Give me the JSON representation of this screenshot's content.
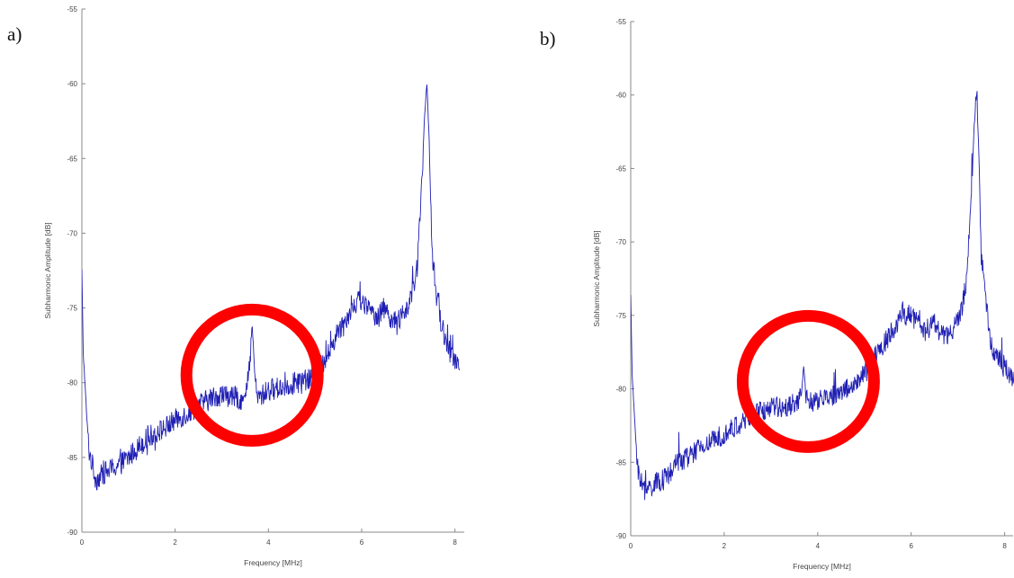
{
  "figure": {
    "panels": [
      {
        "label": "a)"
      },
      {
        "label": "b)"
      }
    ]
  },
  "colors": {
    "trace": "#1f1fb4",
    "circle": "#ff0000",
    "axis": "#888888"
  },
  "chart_data": [
    {
      "type": "line",
      "title": "",
      "xlabel": "Frequency [MHz]",
      "ylabel": "Subharmonic Amplitude [dB]",
      "xlim": [
        0,
        8.2
      ],
      "ylim": [
        -90,
        -55
      ],
      "xticks": [
        0,
        2,
        4,
        6,
        8
      ],
      "yticks": [
        -90,
        -85,
        -80,
        -75,
        -70,
        -65,
        -60,
        -55
      ],
      "grid": false,
      "series": [
        {
          "x": [
            0,
            0.03,
            0.1,
            0.15,
            0.3,
            0.5,
            0.8,
            1.0,
            1.3,
            1.5,
            1.8,
            2.0,
            2.3,
            2.5,
            2.8,
            3.0,
            3.3,
            3.5,
            3.6,
            3.65,
            3.7,
            3.75,
            3.8,
            4.0,
            4.3,
            4.6,
            4.9,
            5.1,
            5.3,
            5.5,
            5.7,
            5.9,
            6.0,
            6.1,
            6.3,
            6.5,
            6.7,
            6.9,
            7.1,
            7.2,
            7.3,
            7.35,
            7.4,
            7.45,
            7.5,
            7.6,
            7.7,
            7.9,
            8.0,
            8.1
          ],
          "y": [
            -72.5,
            -78,
            -82,
            -84.5,
            -86.5,
            -86,
            -85.5,
            -85,
            -84,
            -83.5,
            -83,
            -82.5,
            -82,
            -81.5,
            -81,
            -80.8,
            -81,
            -81.2,
            -79,
            -76,
            -79,
            -81,
            -81,
            -80.5,
            -80.3,
            -80,
            -79.8,
            -79,
            -78,
            -76.5,
            -75.5,
            -74.5,
            -74.5,
            -75,
            -75.5,
            -75,
            -76,
            -75.5,
            -74,
            -72,
            -66,
            -62,
            -60,
            -64,
            -71,
            -74,
            -76,
            -78,
            -78.5,
            -78.5
          ]
        }
      ],
      "annotations": [
        {
          "shape": "circle",
          "center": [
            3.65,
            -79.5
          ]
        }
      ]
    },
    {
      "type": "line",
      "title": "",
      "xlabel": "Frequency [MHz]",
      "ylabel": "Subharmonic Amplitude [dB]",
      "xlim": [
        0,
        8.2
      ],
      "ylim": [
        -90,
        -55
      ],
      "xticks": [
        0,
        2,
        4,
        6,
        8
      ],
      "yticks": [
        -90,
        -85,
        -80,
        -75,
        -70,
        -65,
        -60,
        -55
      ],
      "grid": false,
      "series": [
        {
          "x": [
            0,
            0.03,
            0.1,
            0.15,
            0.3,
            0.5,
            0.8,
            1.0,
            1.3,
            1.5,
            1.8,
            2.0,
            2.3,
            2.5,
            2.8,
            3.0,
            3.3,
            3.5,
            3.65,
            3.7,
            3.75,
            3.8,
            4.0,
            4.3,
            4.6,
            4.9,
            5.1,
            5.3,
            5.5,
            5.7,
            5.9,
            6.0,
            6.1,
            6.3,
            6.5,
            6.7,
            6.9,
            7.1,
            7.2,
            7.3,
            7.35,
            7.4,
            7.45,
            7.5,
            7.6,
            7.7,
            7.9,
            8.0,
            8.1,
            8.2
          ],
          "y": [
            -73.5,
            -79,
            -83,
            -85.5,
            -87,
            -86.5,
            -86,
            -85,
            -84.5,
            -84,
            -83.5,
            -83,
            -82.5,
            -82,
            -81.5,
            -81.3,
            -81.2,
            -81,
            -80.5,
            -78.5,
            -80.5,
            -81,
            -80.8,
            -80.5,
            -80,
            -79.5,
            -78.5,
            -77.5,
            -76.5,
            -75.5,
            -75,
            -75,
            -75.3,
            -76,
            -75.5,
            -76.5,
            -76,
            -74.5,
            -72,
            -66,
            -62,
            -60,
            -64,
            -71,
            -74,
            -77,
            -78,
            -78.5,
            -79,
            -79.5
          ]
        }
      ],
      "annotations": [
        {
          "shape": "circle",
          "center": [
            3.8,
            -79.5
          ]
        }
      ]
    }
  ]
}
